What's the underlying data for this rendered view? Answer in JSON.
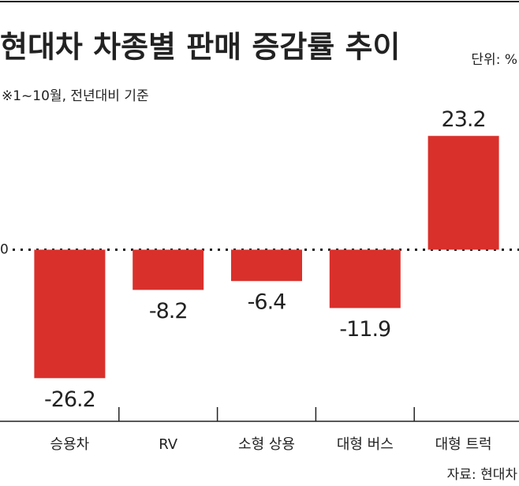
{
  "chart_data": {
    "type": "bar",
    "title": "현대차 차종별 판매 증감률 추이",
    "unit": "단위: %",
    "subtitle": "※1~10월, 전년대비 기준",
    "source": "자료: 현대차",
    "categories": [
      "승용차",
      "RV",
      "소형 상용",
      "대형 버스",
      "대형 트럭"
    ],
    "values": [
      -26.2,
      -8.2,
      -6.4,
      -11.9,
      23.2
    ],
    "color": "#d9302b",
    "ylim": [
      -35,
      30
    ],
    "yticks": [
      0
    ],
    "grid": true
  }
}
